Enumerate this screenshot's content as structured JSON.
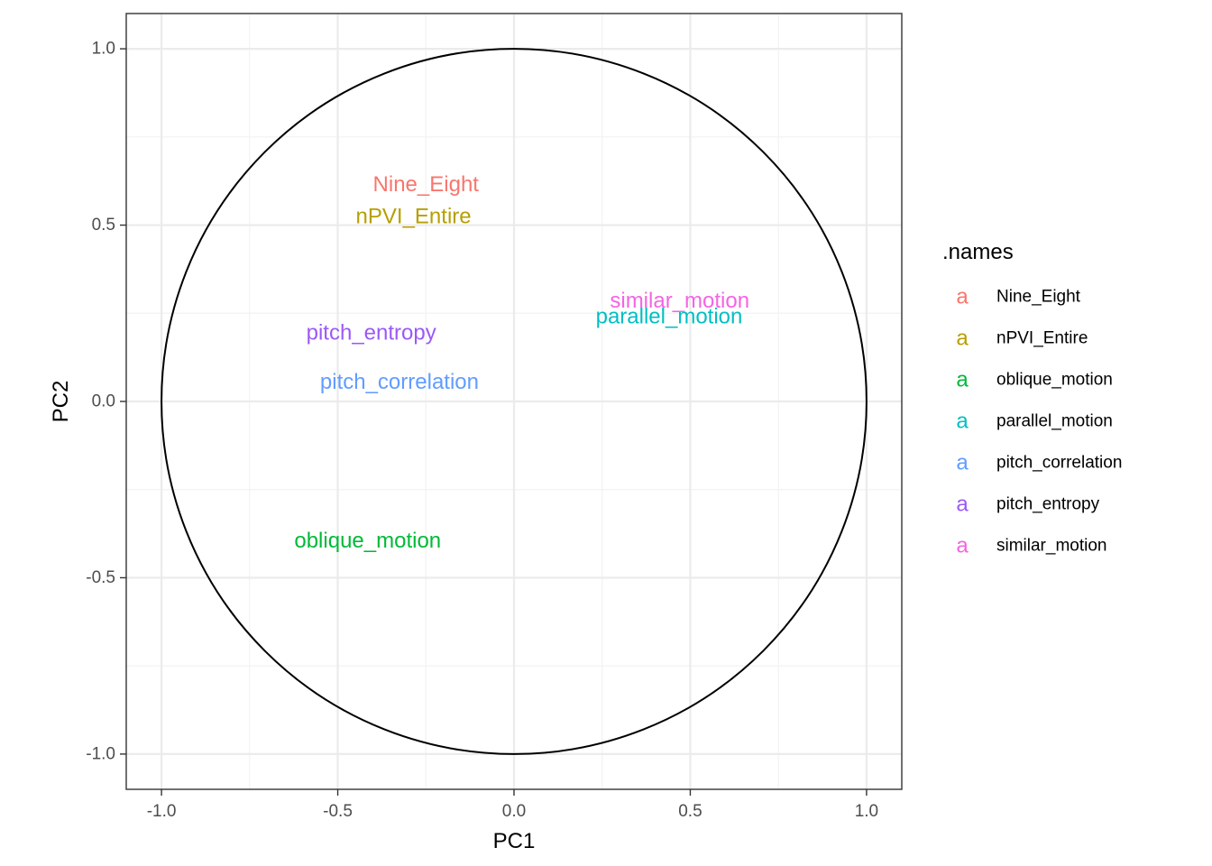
{
  "chart_data": {
    "type": "scatter",
    "title": "",
    "xlabel": "PC1",
    "ylabel": "PC2",
    "xlim": [
      -1.1,
      1.1
    ],
    "ylim": [
      -1.1,
      1.1
    ],
    "x_ticks": [
      -1.0,
      -0.5,
      0.0,
      0.5,
      1.0
    ],
    "y_ticks": [
      -1.0,
      -0.5,
      0.0,
      0.5,
      1.0
    ],
    "x_tick_labels": [
      "-1.0",
      "-0.5",
      "0.0",
      "0.5",
      "1.0"
    ],
    "y_tick_labels": [
      "-1.0",
      "-0.5",
      "0.0",
      "0.5",
      "1.0"
    ],
    "grid": true,
    "unit_circle": true,
    "legend": {
      "title": ".names",
      "position": "right",
      "key_glyph": "a"
    },
    "series": [
      {
        "name": "Nine_Eight",
        "color": "#F8766D",
        "x": -0.25,
        "y": 0.615
      },
      {
        "name": "nPVI_Entire",
        "color": "#B79F00",
        "x": -0.285,
        "y": 0.525
      },
      {
        "name": "oblique_motion",
        "color": "#00BA38",
        "x": -0.415,
        "y": -0.395
      },
      {
        "name": "parallel_motion",
        "color": "#00BFC4",
        "x": 0.44,
        "y": 0.24
      },
      {
        "name": "pitch_correlation",
        "color": "#619CFF",
        "x": -0.325,
        "y": 0.055
      },
      {
        "name": "pitch_entropy",
        "color": "#9B59F6",
        "x": -0.405,
        "y": 0.195
      },
      {
        "name": "similar_motion",
        "color": "#F564E3",
        "x": 0.47,
        "y": 0.285
      }
    ]
  }
}
